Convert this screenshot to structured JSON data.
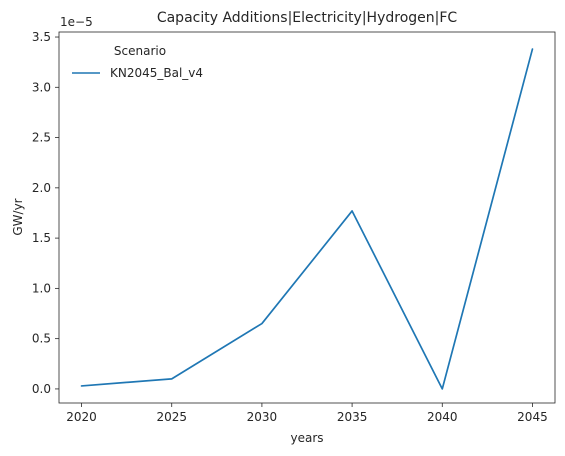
{
  "chart_data": {
    "type": "line",
    "title": "Capacity Additions|Electricity|Hydrogen|FC",
    "xlabel": "years",
    "ylabel": "GW/yr",
    "y_scale_label": "1e−5",
    "x": [
      2020,
      2025,
      2030,
      2035,
      2040,
      2045
    ],
    "x_ticks": [
      2020,
      2025,
      2030,
      2035,
      2040,
      2045
    ],
    "x_tick_labels": [
      "2020",
      "2025",
      "2030",
      "2035",
      "2040",
      "2045"
    ],
    "y_ticks": [
      0.0,
      0.5,
      1.0,
      1.5,
      2.0,
      2.5,
      3.0,
      3.5
    ],
    "y_tick_labels": [
      "0.0",
      "0.5",
      "1.0",
      "1.5",
      "2.0",
      "2.5",
      "3.0",
      "3.5"
    ],
    "xlim": [
      2018.75,
      2046.25
    ],
    "ylim": [
      -0.14,
      3.55
    ],
    "series": [
      {
        "name": "KN2045_Bal_v4",
        "values": [
          0.03,
          0.1,
          0.65,
          1.77,
          0.0,
          3.38
        ],
        "color": "#1f77b4"
      }
    ],
    "legend": {
      "title": "Scenario",
      "placement": "upper-left"
    },
    "grid": false
  }
}
